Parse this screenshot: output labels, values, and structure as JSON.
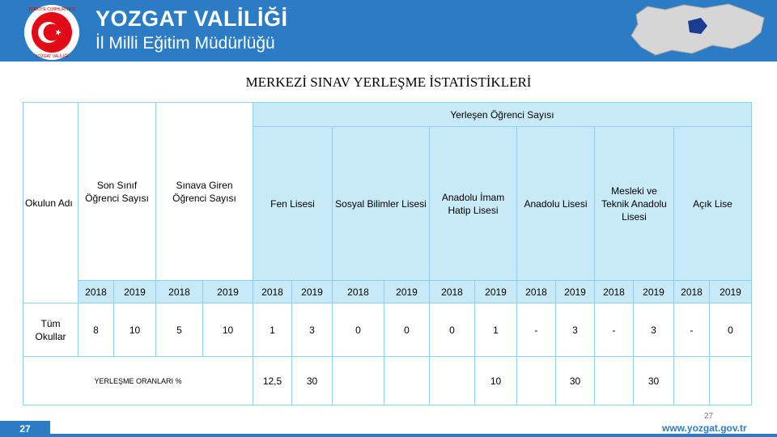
{
  "header": {
    "title_line1": "YOZGAT VALİLİĞİ",
    "title_line2": "İl Milli Eğitim Müdürlüğü",
    "emblem_top": "TÜRKİYE CUMHURİYETİ",
    "emblem_bottom": "YOZGAT VALİLİĞİ"
  },
  "title": "MERKEZİ SINAV YERLEŞME İSTATİSTİKLERİ",
  "table": {
    "group_header": "Yerleşen Öğrenci Sayısı",
    "columns": [
      "Okulun Adı",
      "Son Sınıf Öğrenci Sayısı",
      "Sınava Giren Öğrenci Sayısı",
      "Fen Lisesi",
      "Sosyal Bilimler Lisesi",
      "Anadolu İmam Hatip Lisesi",
      "Anadolu Lisesi",
      "Mesleki ve Teknik Anadolu Lisesi",
      "Açık Lise"
    ],
    "years": [
      "2018",
      "2019",
      "2018",
      "2019",
      "2018",
      "2019",
      "2018",
      "2019",
      "2018",
      "2019",
      "2018",
      "2019",
      "2018",
      "2019",
      "2018",
      "2019"
    ],
    "data_row": {
      "label": "Tüm Okullar",
      "values": [
        "8",
        "10",
        "5",
        "10",
        "1",
        "3",
        "0",
        "0",
        "0",
        "1",
        "-",
        "3",
        "-",
        "3",
        "-",
        "0"
      ]
    },
    "rate_row": {
      "label": "YERLEŞME ORANLARI %",
      "values": [
        "12,5",
        "30",
        null,
        null,
        null,
        "10",
        null,
        "30",
        null,
        "30",
        null,
        null
      ]
    }
  },
  "footer": {
    "page_number_small": "27",
    "url": "www.yozgat.gov.tr",
    "page_number": "27"
  }
}
